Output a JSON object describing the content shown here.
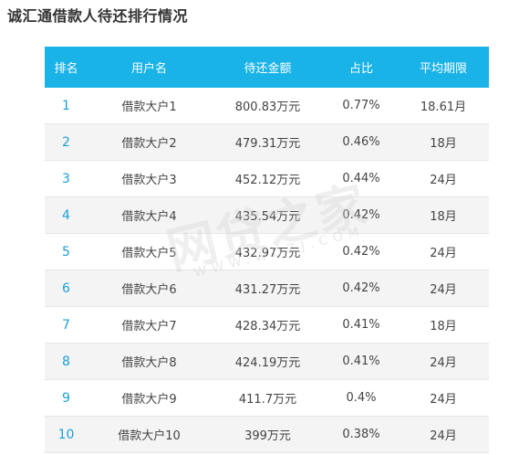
{
  "title": "诚汇通借款人待还排行情况",
  "table": {
    "headers": [
      "排名",
      "用户名",
      "待还金额",
      "占比",
      "平均期限"
    ],
    "rows": [
      [
        "1",
        "借款大户1",
        "800.83万元",
        "0.77%",
        "18.61月"
      ],
      [
        "2",
        "借款大户2",
        "479.31万元",
        "0.46%",
        "18月"
      ],
      [
        "3",
        "借款大户3",
        "452.12万元",
        "0.44%",
        "24月"
      ],
      [
        "4",
        "借款大户4",
        "435.54万元",
        "0.42%",
        "18月"
      ],
      [
        "5",
        "借款大户5",
        "432.97万元",
        "0.42%",
        "24月"
      ],
      [
        "6",
        "借款大户6",
        "431.27万元",
        "0.42%",
        "24月"
      ],
      [
        "7",
        "借款大户7",
        "428.34万元",
        "0.41%",
        "18月"
      ],
      [
        "8",
        "借款大户8",
        "424.19万元",
        "0.41%",
        "24月"
      ],
      [
        "9",
        "借款大户9",
        "411.7万元",
        "0.4%",
        "24月"
      ],
      [
        "10",
        "借款大户10",
        "399万元",
        "0.38%",
        "24月"
      ]
    ]
  },
  "watermark": {
    "text": "网贷之家",
    "sub": "WWW.WDZJ.COM"
  },
  "colors": {
    "header_bg": "#1ab3e8",
    "rank_text": "#1a9fd9"
  }
}
